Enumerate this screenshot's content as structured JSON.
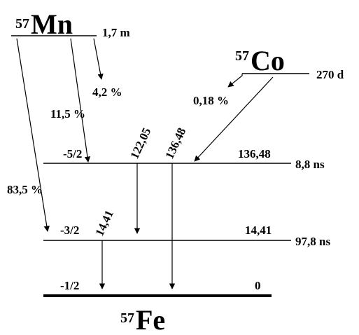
{
  "nuclides": {
    "mn57": {
      "mass": "57",
      "symbol": "Mn",
      "half_life": "1,7 m"
    },
    "co57": {
      "mass": "57",
      "symbol": "Co",
      "half_life": "270 d"
    },
    "fe57": {
      "mass": "57",
      "symbol": "Fe"
    }
  },
  "branches": {
    "mn_to_0": "4,2 %",
    "mn_to_136": "11,5 %",
    "mn_to_14": "83,5 %",
    "co_to_136": "0,18 %"
  },
  "levels": {
    "l136": {
      "spin": "-5/2",
      "energy": "136,48",
      "lifetime": "8,8 ns"
    },
    "l14": {
      "spin": "-3/2",
      "energy": "14,41",
      "lifetime": "97,8 ns"
    },
    "l0": {
      "spin": "-1/2",
      "energy": "0"
    }
  },
  "gammas": {
    "g122": "122,05",
    "g136": "136,48",
    "g14": "14,41"
  }
}
